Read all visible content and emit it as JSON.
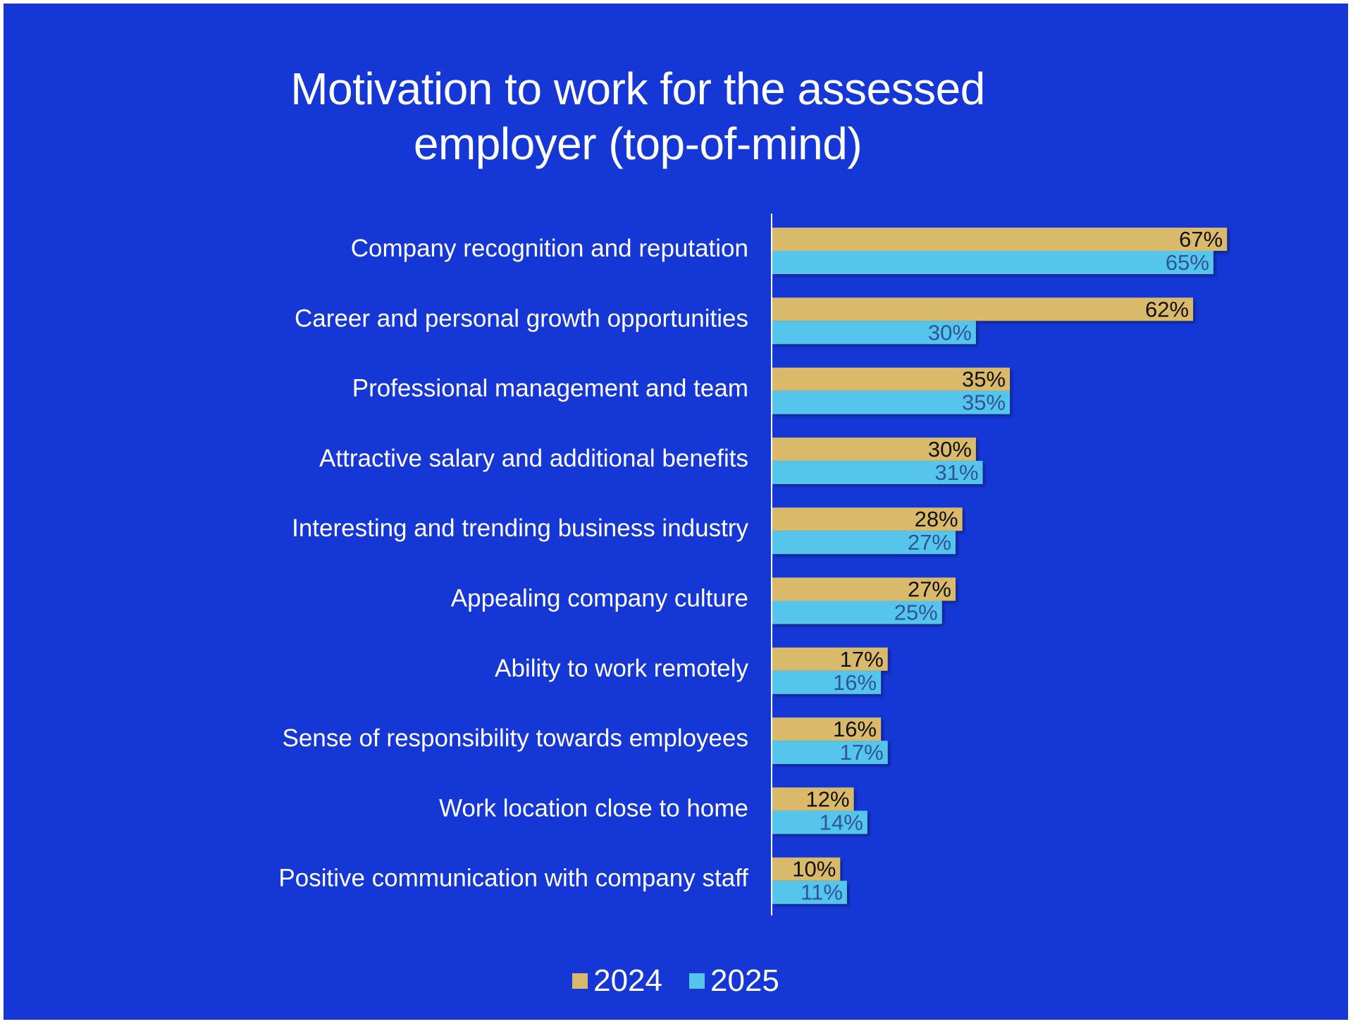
{
  "slide": {
    "background": "#1537D6"
  },
  "chart_data": {
    "type": "bar",
    "orientation": "horizontal",
    "title": [
      "Motivation to work for the assessed",
      "employer (top-of-mind)"
    ],
    "categories": [
      "Company recognition and reputation",
      "Career and personal growth opportunities",
      "Professional management and team",
      "Attractive salary and additional benefits",
      "Interesting and trending business industry",
      "Appealing company culture",
      "Ability to work remotely",
      "Sense of responsibility towards employees",
      "Work location close to home",
      "Positive communication with company staff"
    ],
    "series": [
      {
        "name": "2024",
        "color": "#D9B96B",
        "label_color": "#111111",
        "values": [
          67,
          62,
          35,
          30,
          28,
          27,
          17,
          16,
          12,
          10
        ]
      },
      {
        "name": "2025",
        "color": "#56C5EC",
        "label_color": "#2F5597",
        "values": [
          65,
          30,
          35,
          31,
          27,
          25,
          16,
          17,
          14,
          11
        ]
      }
    ],
    "value_suffix": "%",
    "xlim": [
      0,
      70
    ],
    "grid": false,
    "legend_position": "bottom"
  }
}
